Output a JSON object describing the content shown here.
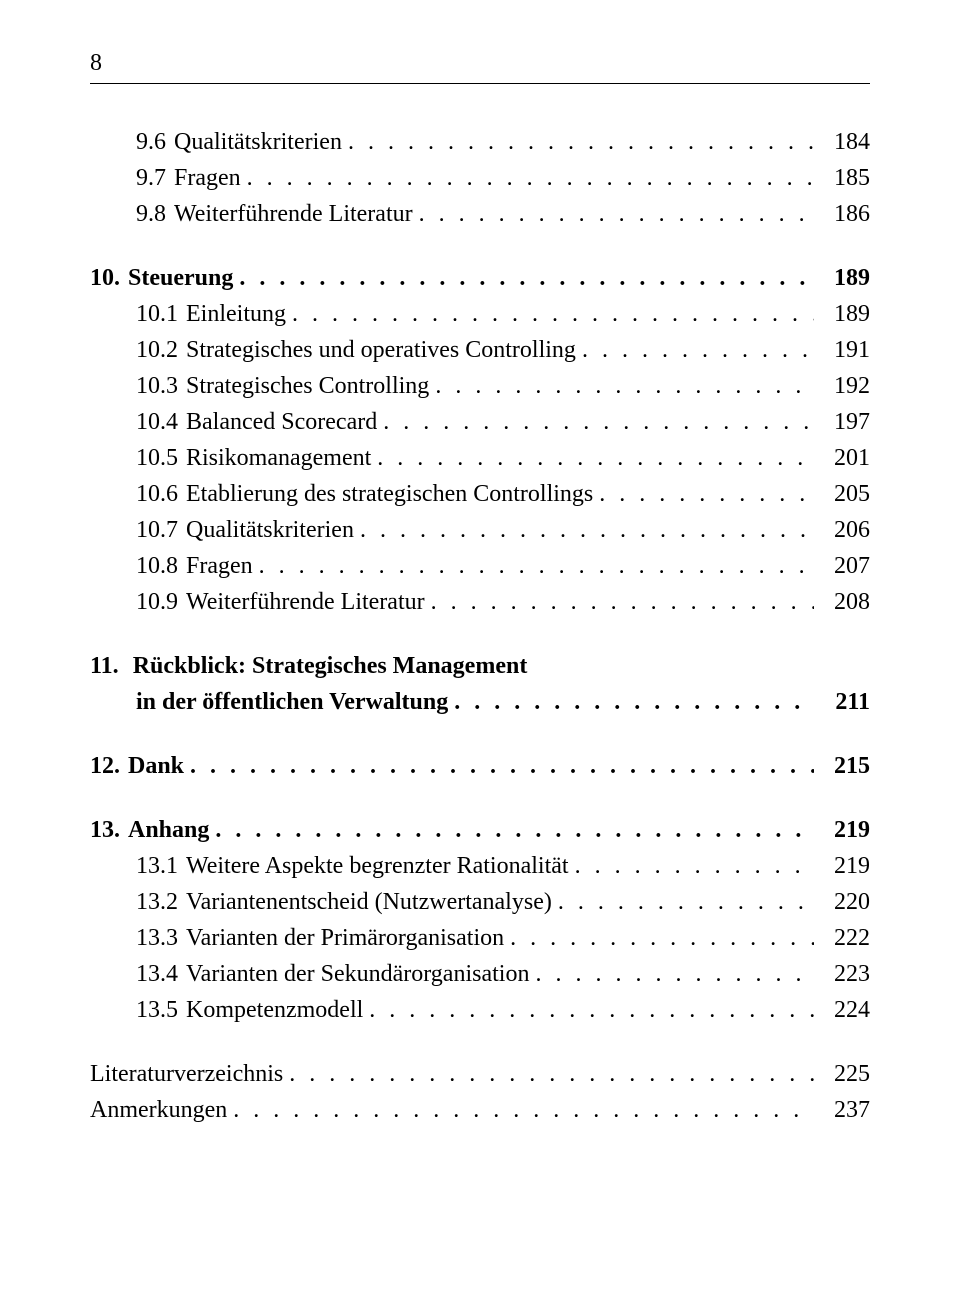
{
  "page_number": "8",
  "sections": [
    {
      "entries": [
        {
          "number": "9.6",
          "title": "Qualitätskriterien",
          "page": "184",
          "bold": false,
          "indented": true
        },
        {
          "number": "9.7",
          "title": "Fragen",
          "page": "185",
          "bold": false,
          "indented": true
        },
        {
          "number": "9.8",
          "title": "Weiterführende Literatur",
          "page": "186",
          "bold": false,
          "indented": true
        }
      ]
    },
    {
      "entries": [
        {
          "number": "10.",
          "title": "Steuerung",
          "page": "189",
          "bold": true,
          "indented": false
        },
        {
          "number": "10.1",
          "title": "Einleitung",
          "page": "189",
          "bold": false,
          "indented": true
        },
        {
          "number": "10.2",
          "title": "Strategisches und operatives Controlling",
          "page": "191",
          "bold": false,
          "indented": true
        },
        {
          "number": "10.3",
          "title": "Strategisches Controlling",
          "page": "192",
          "bold": false,
          "indented": true
        },
        {
          "number": "10.4",
          "title": "Balanced Scorecard",
          "page": "197",
          "bold": false,
          "indented": true
        },
        {
          "number": "10.5",
          "title": "Risikomanagement",
          "page": "201",
          "bold": false,
          "indented": true
        },
        {
          "number": "10.6",
          "title": "Etablierung des strategischen Controllings",
          "page": "205",
          "bold": false,
          "indented": true
        },
        {
          "number": "10.7",
          "title": "Qualitätskriterien",
          "page": "206",
          "bold": false,
          "indented": true
        },
        {
          "number": "10.8",
          "title": "Fragen",
          "page": "207",
          "bold": false,
          "indented": true
        },
        {
          "number": "10.9",
          "title": "Weiterführende Literatur",
          "page": "208",
          "bold": false,
          "indented": true
        }
      ]
    },
    {
      "multiline": true,
      "number": "11.",
      "line1": "Rückblick: Strategisches Management",
      "line2": "in der öffentlichen Verwaltung",
      "page": "211",
      "bold": true
    },
    {
      "entries": [
        {
          "number": "12.",
          "title": "Dank",
          "page": "215",
          "bold": true,
          "indented": false
        }
      ]
    },
    {
      "entries": [
        {
          "number": "13.",
          "title": "Anhang",
          "page": "219",
          "bold": true,
          "indented": false
        },
        {
          "number": "13.1",
          "title": "Weitere Aspekte begrenzter Rationalität",
          "page": "219",
          "bold": false,
          "indented": true
        },
        {
          "number": "13.2",
          "title": "Variantenentscheid (Nutzwertanalyse)",
          "page": "220",
          "bold": false,
          "indented": true
        },
        {
          "number": "13.3",
          "title": "Varianten der Primärorganisation",
          "page": "222",
          "bold": false,
          "indented": true
        },
        {
          "number": "13.4",
          "title": "Varianten der Sekundärorganisation",
          "page": "223",
          "bold": false,
          "indented": true
        },
        {
          "number": "13.5",
          "title": "Kompetenzmodell",
          "page": "224",
          "bold": false,
          "indented": true
        }
      ]
    },
    {
      "entries": [
        {
          "number": "",
          "title": "Literaturverzeichnis",
          "page": "225",
          "bold": false,
          "indented": false
        },
        {
          "number": "",
          "title": "Anmerkungen",
          "page": "237",
          "bold": false,
          "indented": false
        }
      ]
    }
  ]
}
